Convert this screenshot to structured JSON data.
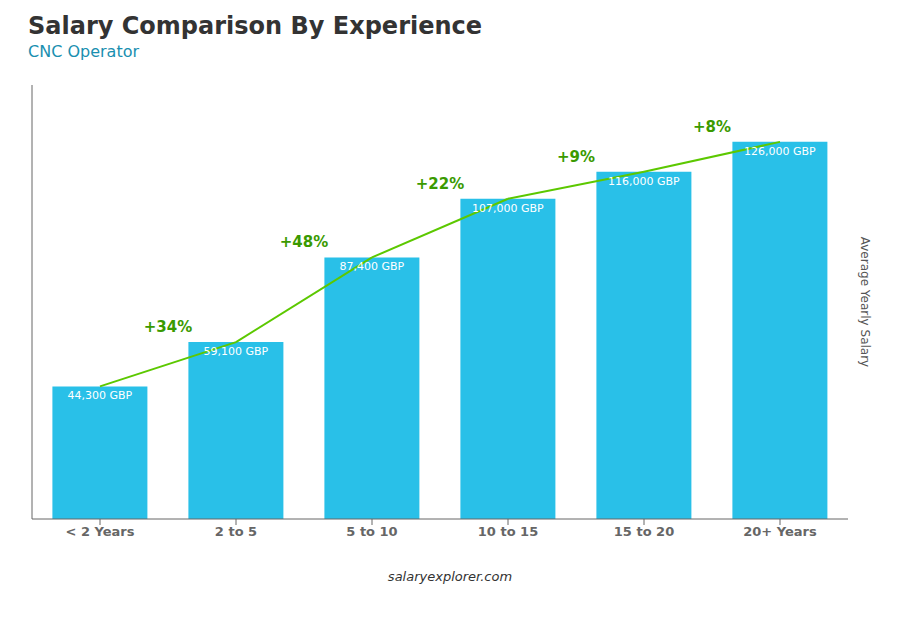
{
  "chart_data": {
    "type": "bar",
    "title": "Salary Comparison By Experience",
    "subtitle": "CNC Operator",
    "ylabel": "Average Yearly Salary",
    "footer": "salaryexplorer.com",
    "categories": [
      "< 2 Years",
      "2 to 5",
      "5 to 10",
      "10 to 15",
      "15 to 20",
      "20+ Years"
    ],
    "values": [
      44300,
      59100,
      87400,
      107000,
      116000,
      126000
    ],
    "value_labels": [
      "44,300 GBP",
      "59,100 GBP",
      "87,400 GBP",
      "107,000 GBP",
      "116,000 GBP",
      "126,000 GBP"
    ],
    "data_labels": true,
    "color": "#29c0e8",
    "ylim": [
      0,
      145000
    ],
    "tick_labels": "x",
    "grid": false,
    "annotations": [
      {
        "text": "+34%",
        "from": "< 2 Years",
        "to": "2 to 5"
      },
      {
        "text": "+48%",
        "from": "2 to 5",
        "to": "5 to 10"
      },
      {
        "text": "+22%",
        "from": "5 to 10",
        "to": "10 to 15"
      },
      {
        "text": "+9%",
        "from": "10 to 15",
        "to": "15 to 20"
      },
      {
        "text": "+8%",
        "from": "15 to 20",
        "to": "20+ Years"
      }
    ]
  }
}
